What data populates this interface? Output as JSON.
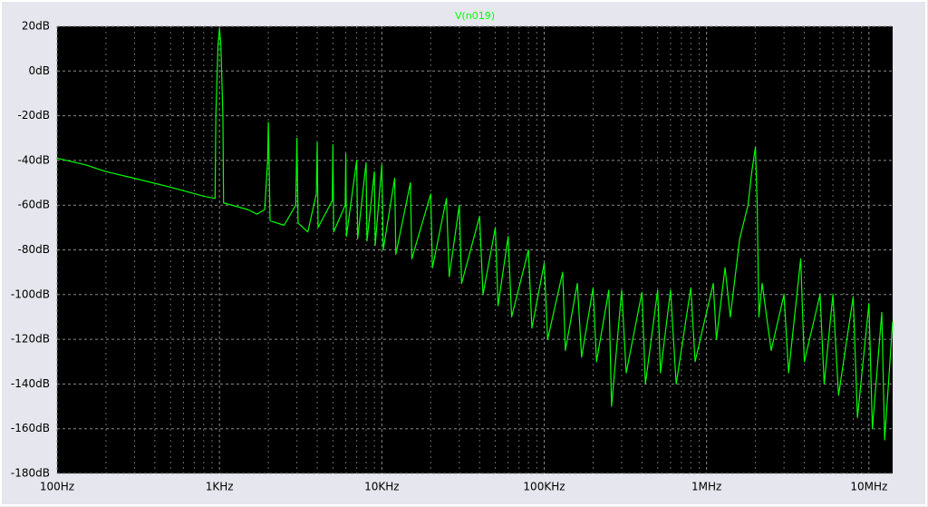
{
  "chart_data": {
    "type": "line",
    "title": "V(n019)",
    "log_x": true,
    "grid": true,
    "minor_grid": true,
    "background": "#000000",
    "xlim": [
      100,
      14000000
    ],
    "ylim": [
      -180,
      20
    ],
    "xticks": [
      {
        "value": 100,
        "label": "100Hz"
      },
      {
        "value": 1000,
        "label": "1KHz"
      },
      {
        "value": 10000,
        "label": "10KHz"
      },
      {
        "value": 100000,
        "label": "100KHz"
      },
      {
        "value": 1000000,
        "label": "1MHz"
      },
      {
        "value": 10000000,
        "label": "10MHz"
      }
    ],
    "yticks": [
      {
        "value": 20,
        "label": "20dB"
      },
      {
        "value": 0,
        "label": "0dB"
      },
      {
        "value": -20,
        "label": "-20dB"
      },
      {
        "value": -40,
        "label": "-40dB"
      },
      {
        "value": -60,
        "label": "-60dB"
      },
      {
        "value": -80,
        "label": "-80dB"
      },
      {
        "value": -100,
        "label": "-100dB"
      },
      {
        "value": -120,
        "label": "-120dB"
      },
      {
        "value": -140,
        "label": "-140dB"
      },
      {
        "value": -160,
        "label": "-160dB"
      },
      {
        "value": -180,
        "label": "-180dB"
      }
    ],
    "series": [
      {
        "color": "#00ff00",
        "x": [
          100,
          150,
          200,
          300,
          500,
          800,
          940,
          950,
          980,
          1000,
          1020,
          1050,
          1060,
          1500,
          1700,
          1900,
          1980,
          2000,
          2020,
          2050,
          2500,
          2950,
          3000,
          3050,
          3500,
          3950,
          4000,
          4050,
          4950,
          5000,
          5050,
          5950,
          6000,
          6050,
          7000,
          7100,
          8000,
          8100,
          9000,
          9100,
          10000,
          10200,
          12000,
          12200,
          15000,
          15300,
          20000,
          20500,
          25000,
          26000,
          30000,
          31000,
          40000,
          42000,
          50000,
          52000,
          60000,
          63000,
          80000,
          84000,
          100000,
          105000,
          130000,
          135000,
          160000,
          170000,
          200000,
          210000,
          250000,
          260000,
          300000,
          320000,
          400000,
          420000,
          500000,
          520000,
          600000,
          650000,
          800000,
          850000,
          1100000,
          1150000,
          1300000,
          1400000,
          1600000,
          1800000,
          1900000,
          2000000,
          2050000,
          2100000,
          2200000,
          2500000,
          3000000,
          3200000,
          3800000,
          4000000,
          5000000,
          5300000,
          6000000,
          6500000,
          8000000,
          8500000,
          10000000,
          10500000,
          12000000,
          12500000,
          14000000
        ],
        "values": [
          -39,
          -42,
          -45,
          -48,
          -52,
          -56,
          -57,
          -20,
          12,
          19,
          12,
          -20,
          -59,
          -62,
          -64,
          -62,
          -40,
          -23,
          -40,
          -67,
          -69,
          -60,
          -30,
          -68,
          -72,
          -55,
          -32,
          -70,
          -58,
          -33,
          -72,
          -60,
          -37,
          -74,
          -40,
          -75,
          -41,
          -76,
          -45,
          -78,
          -42,
          -80,
          -48,
          -82,
          -50,
          -84,
          -55,
          -88,
          -57,
          -92,
          -60,
          -95,
          -65,
          -100,
          -70,
          -105,
          -74,
          -110,
          -80,
          -115,
          -86,
          -120,
          -90,
          -125,
          -95,
          -128,
          -97,
          -130,
          -98,
          -150,
          -98,
          -135,
          -99,
          -140,
          -98,
          -135,
          -98,
          -140,
          -97,
          -130,
          -95,
          -120,
          -88,
          -110,
          -75,
          -60,
          -45,
          -34,
          -60,
          -110,
          -95,
          -125,
          -100,
          -135,
          -84,
          -130,
          -100,
          -140,
          -100,
          -145,
          -101,
          -155,
          -104,
          -160,
          -108,
          -165,
          -112
        ]
      }
    ]
  }
}
